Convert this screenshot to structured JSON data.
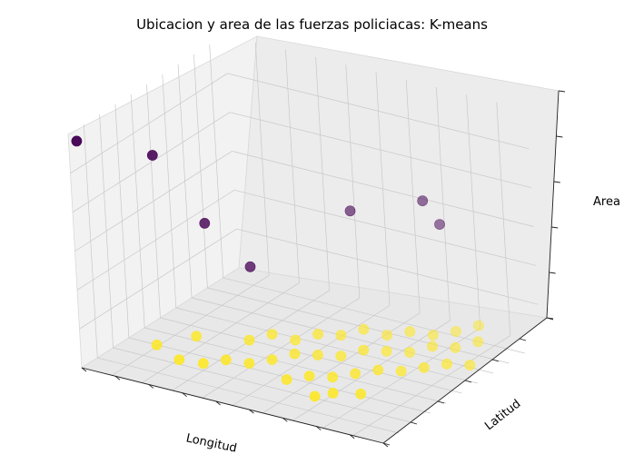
{
  "chart_data": {
    "type": "scatter",
    "projection": "3d",
    "title": "Ubicacion y area de las fuerzas policiacas: K-means",
    "xlabel": "Longitud",
    "ylabel": "Latitud",
    "zlabel": "Area",
    "grid": true,
    "colormap": {
      "low": "#440154",
      "high": "#fde725"
    },
    "tick_labels_visible": false,
    "series": [
      {
        "cluster": 0,
        "color": "#440154",
        "points": [
          [
            0.0,
            0.05,
            0.95
          ],
          [
            0.17,
            0.2,
            0.88
          ],
          [
            0.25,
            0.35,
            0.55
          ],
          [
            0.34,
            0.45,
            0.35
          ],
          [
            0.55,
            0.7,
            0.55
          ],
          [
            0.73,
            0.82,
            0.6
          ],
          [
            0.75,
            0.88,
            0.48
          ]
        ]
      },
      {
        "cluster": 1,
        "color": "#fde725",
        "points": [
          [
            0.2,
            0.35,
            0.05
          ],
          [
            0.12,
            0.25,
            0.03
          ],
          [
            0.22,
            0.2,
            0.02
          ],
          [
            0.35,
            0.4,
            0.06
          ],
          [
            0.4,
            0.45,
            0.08
          ],
          [
            0.45,
            0.5,
            0.05
          ],
          [
            0.5,
            0.55,
            0.07
          ],
          [
            0.55,
            0.6,
            0.06
          ],
          [
            0.6,
            0.65,
            0.08
          ],
          [
            0.65,
            0.7,
            0.05
          ],
          [
            0.7,
            0.75,
            0.06
          ],
          [
            0.75,
            0.8,
            0.04
          ],
          [
            0.8,
            0.85,
            0.05
          ],
          [
            0.85,
            0.9,
            0.07
          ],
          [
            0.3,
            0.2,
            0.03
          ],
          [
            0.35,
            0.25,
            0.04
          ],
          [
            0.4,
            0.3,
            0.02
          ],
          [
            0.45,
            0.35,
            0.03
          ],
          [
            0.5,
            0.4,
            0.05
          ],
          [
            0.55,
            0.45,
            0.04
          ],
          [
            0.6,
            0.5,
            0.03
          ],
          [
            0.65,
            0.55,
            0.05
          ],
          [
            0.7,
            0.6,
            0.04
          ],
          [
            0.75,
            0.65,
            0.03
          ],
          [
            0.8,
            0.7,
            0.05
          ],
          [
            0.85,
            0.75,
            0.04
          ],
          [
            0.9,
            0.8,
            0.06
          ],
          [
            0.55,
            0.25,
            0.02
          ],
          [
            0.6,
            0.3,
            0.03
          ],
          [
            0.65,
            0.35,
            0.02
          ],
          [
            0.7,
            0.4,
            0.03
          ],
          [
            0.75,
            0.45,
            0.04
          ],
          [
            0.8,
            0.5,
            0.03
          ],
          [
            0.85,
            0.55,
            0.04
          ],
          [
            0.9,
            0.6,
            0.05
          ],
          [
            0.95,
            0.65,
            0.04
          ],
          [
            0.68,
            0.18,
            0.02
          ],
          [
            0.72,
            0.22,
            0.03
          ],
          [
            0.78,
            0.28,
            0.02
          ]
        ]
      }
    ]
  }
}
